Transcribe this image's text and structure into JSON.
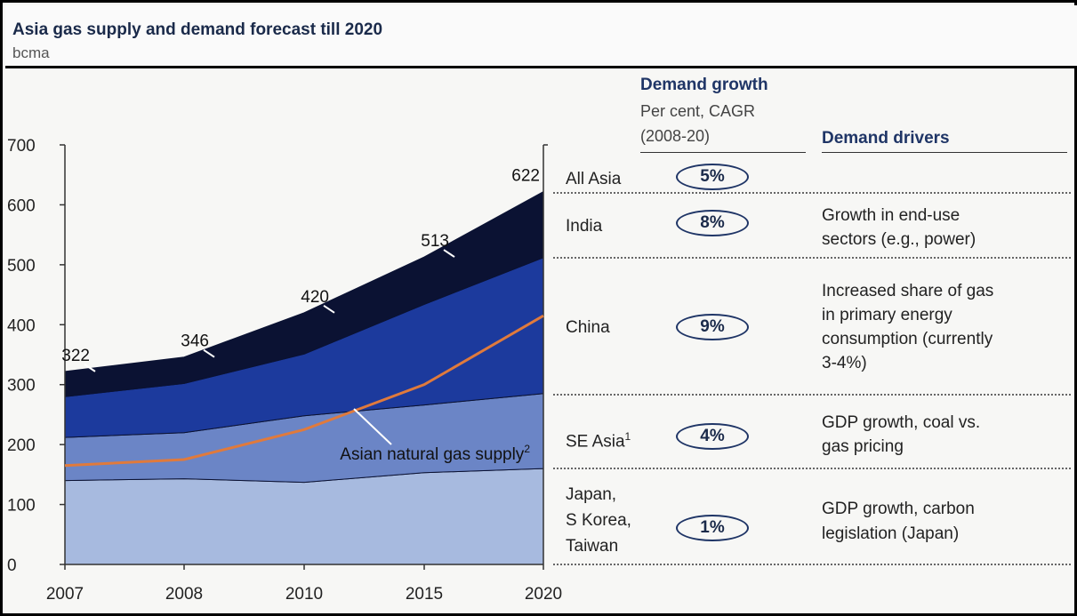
{
  "title": "Asia gas supply and demand forecast till 2020",
  "subtitle": "bcma",
  "chart_data": {
    "type": "area",
    "x": [
      "2007",
      "2008",
      "2010",
      "2015",
      "2020"
    ],
    "ylim": [
      0,
      700
    ],
    "yticks": [
      "700",
      "600",
      "500",
      "400",
      "300",
      "200",
      "100",
      "0"
    ],
    "series": [
      {
        "values": [
          140,
          143,
          137,
          153,
          160
        ],
        "color": "#a7badf"
      },
      {
        "values": [
          72,
          77,
          111,
          113,
          125
        ],
        "color": "#6b85c6"
      },
      {
        "values": [
          68,
          82,
          103,
          168,
          227
        ],
        "color": "#1c3a9d"
      },
      {
        "values": [
          42,
          44,
          69,
          79,
          110
        ],
        "color": "#0b1233"
      }
    ],
    "totals": [
      "322",
      "346",
      "420",
      "513",
      "622"
    ],
    "supply_line": {
      "values": [
        165,
        175,
        225,
        300,
        415
      ],
      "color": "#e07a3c"
    },
    "annotation": {
      "text": "Asian natural gas supply",
      "sup": "2"
    }
  },
  "headers": {
    "demand_growth": "Demand growth",
    "demand_growth_sub1": "Per cent, CAGR",
    "demand_growth_sub2": "(2008-20)",
    "demand_drivers": "Demand drivers"
  },
  "rows": [
    {
      "region": [
        "All Asia"
      ],
      "growth": "5%",
      "drivers": []
    },
    {
      "region": [
        "India"
      ],
      "growth": "8%",
      "drivers": [
        "Growth in end-use",
        "sectors (e.g., power)"
      ]
    },
    {
      "region": [
        "China"
      ],
      "growth": "9%",
      "drivers": [
        "Increased share of gas",
        "in primary energy",
        "consumption (currently",
        "3-4%)"
      ]
    },
    {
      "region": [
        "SE Asia"
      ],
      "region_sup": "1",
      "growth": "4%",
      "drivers": [
        "GDP growth, coal vs.",
        "gas pricing"
      ]
    },
    {
      "region": [
        "Japan,",
        "S Korea,",
        "Taiwan"
      ],
      "growth": "1%",
      "drivers": [
        "GDP growth, carbon",
        "legislation (Japan)"
      ]
    }
  ]
}
